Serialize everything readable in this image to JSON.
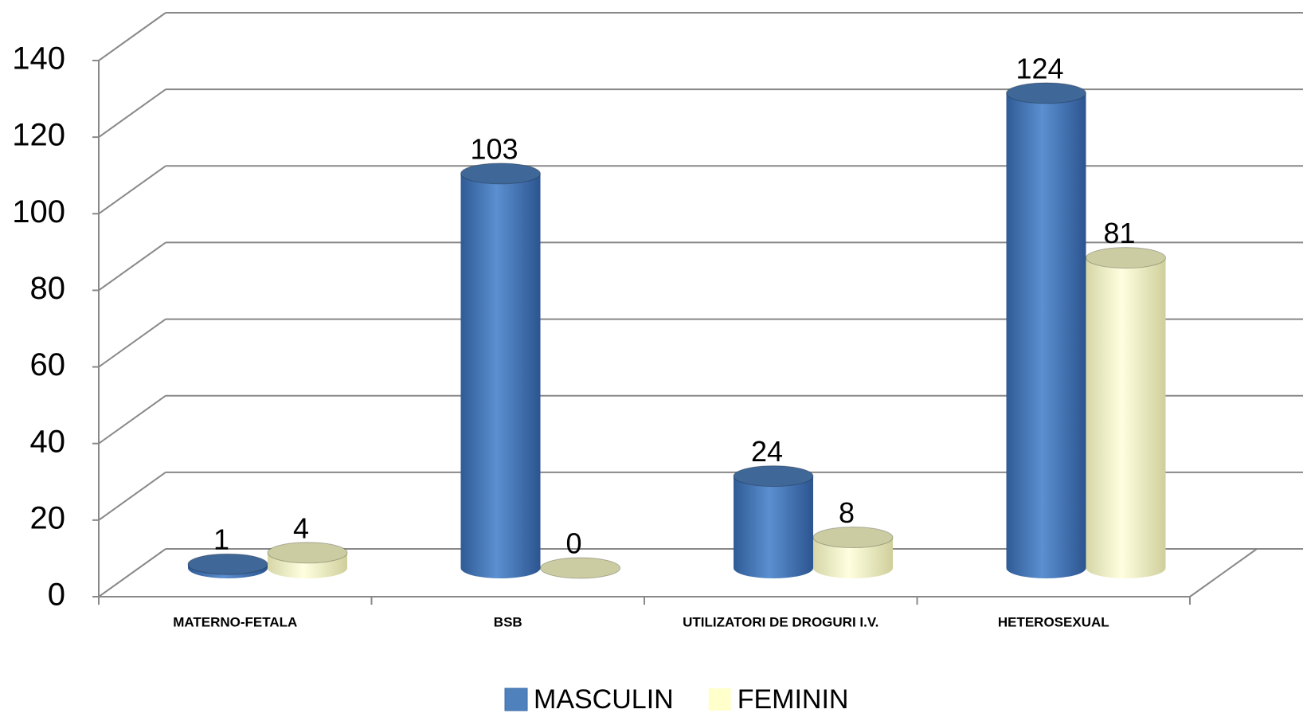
{
  "chart_data": {
    "type": "bar3d",
    "categories": [
      "MATERNO-FETALA",
      "BSB",
      "UTILIZATORI DE DROGURI I.V.",
      "HETEROSEXUAL"
    ],
    "series": [
      {
        "name": "MASCULIN",
        "color": "#4f81bd",
        "values": [
          1,
          103,
          24,
          124
        ]
      },
      {
        "name": "FEMININ",
        "color": "#ffffcc",
        "values": [
          4,
          0,
          8,
          81
        ]
      }
    ],
    "ylim": [
      0,
      140
    ],
    "yticks": [
      0,
      20,
      40,
      60,
      80,
      100,
      120,
      140
    ],
    "grid": true,
    "legend": "bottom"
  }
}
